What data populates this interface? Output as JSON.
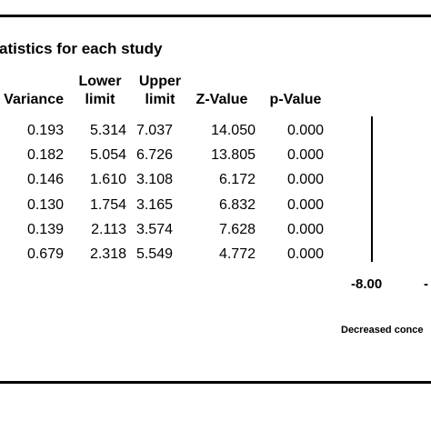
{
  "panel_title": "atistics for each study",
  "chart_data": {
    "type": "table",
    "columns": [
      {
        "key": "variance",
        "header_line1": "",
        "header_line2": "Variance"
      },
      {
        "key": "lower",
        "header_line1": "Lower",
        "header_line2": "limit"
      },
      {
        "key": "upper",
        "header_line1": "Upper",
        "header_line2": "limit"
      },
      {
        "key": "z",
        "header_line1": "",
        "header_line2": "Z-Value"
      },
      {
        "key": "p",
        "header_line1": "",
        "header_line2": "p-Value"
      }
    ],
    "rows": [
      {
        "variance": "0.193",
        "lower": "5.314",
        "upper": "7.037",
        "z": "14.050",
        "p": "0.000"
      },
      {
        "variance": "0.182",
        "lower": "5.054",
        "upper": "6.726",
        "z": "13.805",
        "p": "0.000"
      },
      {
        "variance": "0.146",
        "lower": "1.610",
        "upper": "3.108",
        "z": "6.172",
        "p": "0.000"
      },
      {
        "variance": "0.130",
        "lower": "1.754",
        "upper": "3.165",
        "z": "6.832",
        "p": "0.000"
      },
      {
        "variance": "0.139",
        "lower": "2.113",
        "upper": "3.574",
        "z": "7.628",
        "p": "0.000"
      },
      {
        "variance": "0.679",
        "lower": "2.318",
        "upper": "5.549",
        "z": "4.772",
        "p": "0.000"
      }
    ],
    "forest_axis": {
      "tick_labels": [
        "-8.00",
        "-"
      ],
      "caption": "Decreased conce"
    }
  }
}
